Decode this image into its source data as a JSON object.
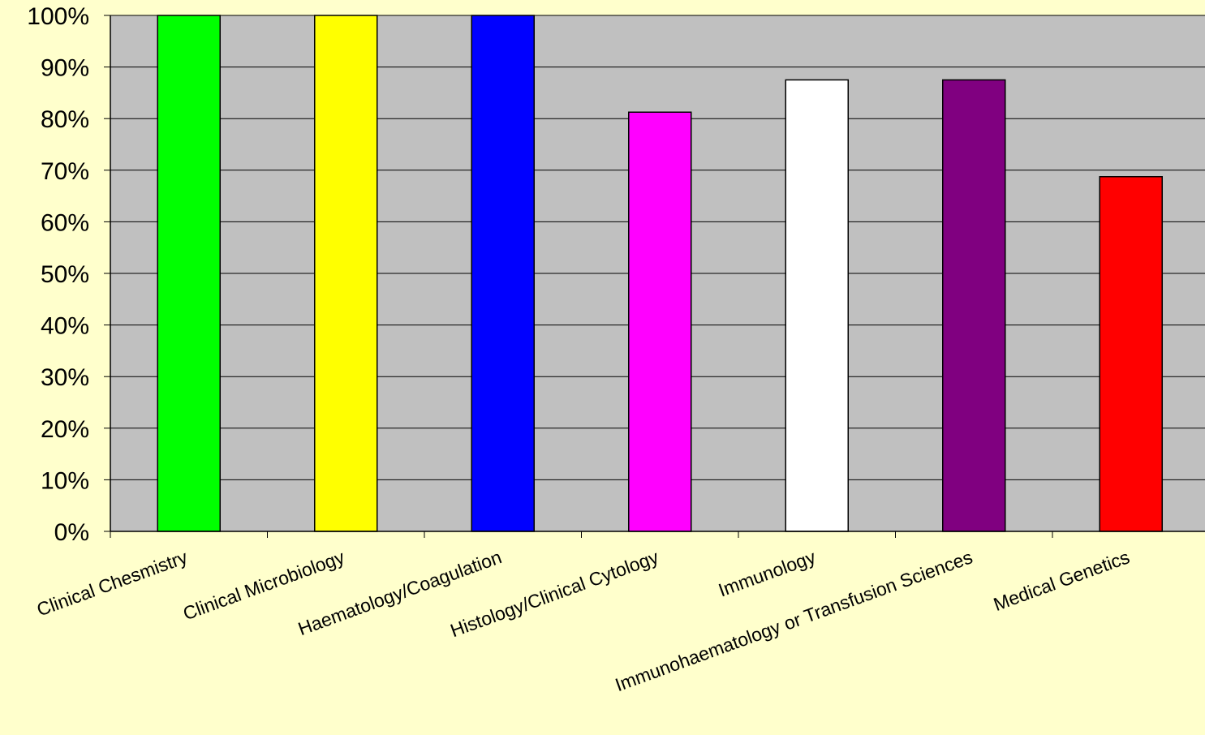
{
  "chart_data": {
    "type": "bar",
    "title": "",
    "xlabel": "",
    "ylabel": "",
    "categories": [
      "Clinical Chesmistry",
      "Clinical Microbiology",
      "Haematology/Coagulation",
      "Histology/Clinical Cytology",
      "Immunology",
      "Immunohaematology or Transfusion Sciences",
      "Medical Genetics"
    ],
    "values": [
      100,
      100,
      100,
      81.25,
      87.5,
      87.5,
      68.75
    ],
    "bar_colors": [
      "#00FF00",
      "#FFFF00",
      "#0000FF",
      "#FF00FF",
      "#FFFFFF",
      "#800080",
      "#FF0000"
    ],
    "ylim": [
      0,
      100
    ],
    "y_ticks": [
      "0%",
      "10%",
      "20%",
      "30%",
      "40%",
      "50%",
      "60%",
      "70%",
      "80%",
      "90%",
      "100%"
    ],
    "grid": true,
    "legend": "none",
    "colors": {
      "background": "#FFFFCC",
      "plot_area": "#C0C0C0",
      "gridline": "#000000"
    }
  }
}
